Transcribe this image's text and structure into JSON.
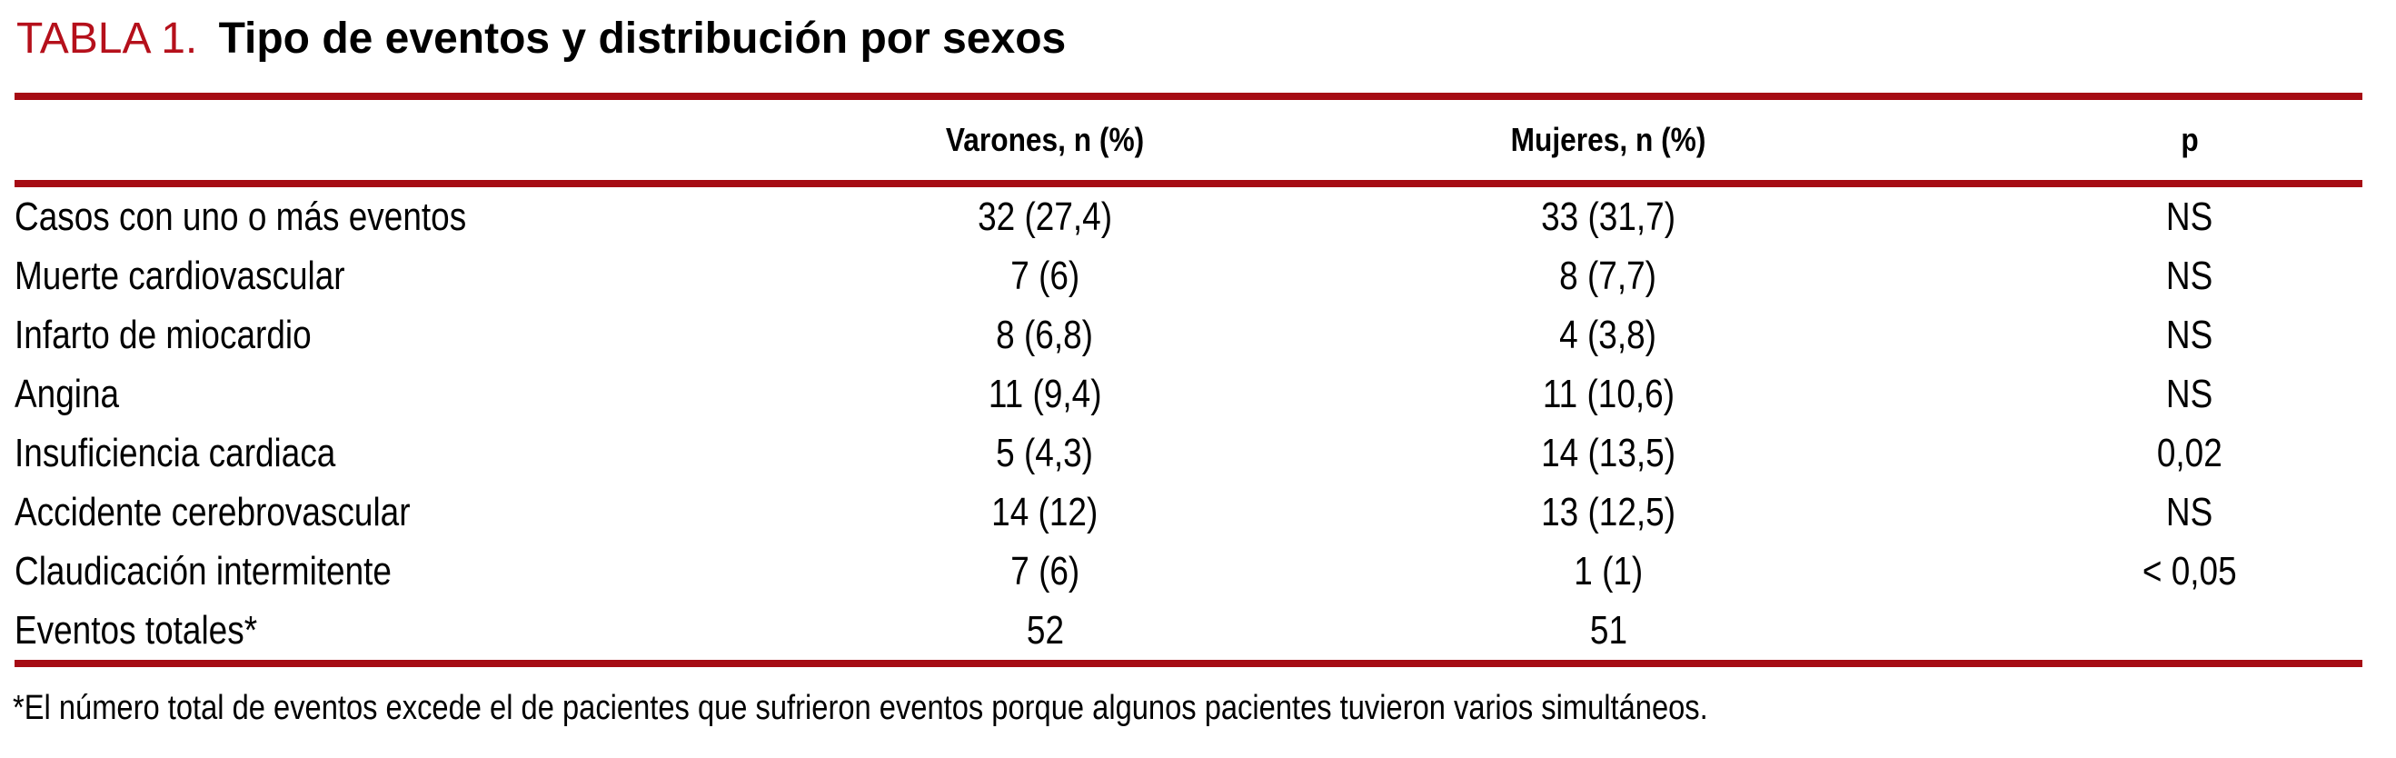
{
  "colors": {
    "title_red": "#b5101b",
    "rule_red": "#a60c14",
    "text": "#000000",
    "background": "#ffffff"
  },
  "header": {
    "label": "TABLA 1.",
    "title": "Tipo de eventos y distribución por sexos"
  },
  "columns": {
    "rowhead": "",
    "varones": "Varones, n (%)",
    "mujeres": "Mujeres, n (%)",
    "p": "p"
  },
  "rows": [
    {
      "label": "Casos con uno o más eventos",
      "varones": "32 (27,4)",
      "mujeres": "33 (31,7)",
      "p": "NS"
    },
    {
      "label": "Muerte cardiovascular",
      "varones": "7 (6)",
      "mujeres": "8 (7,7)",
      "p": "NS"
    },
    {
      "label": "Infarto de miocardio",
      "varones": "8 (6,8)",
      "mujeres": "4 (3,8)",
      "p": "NS"
    },
    {
      "label": "Angina",
      "varones": "11 (9,4)",
      "mujeres": "11 (10,6)",
      "p": "NS"
    },
    {
      "label": "Insuficiencia cardiaca",
      "varones": "5 (4,3)",
      "mujeres": "14 (13,5)",
      "p": "0,02"
    },
    {
      "label": "Accidente cerebrovascular",
      "varones": "14 (12)",
      "mujeres": "13 (12,5)",
      "p": "NS"
    },
    {
      "label": "Claudicación intermitente",
      "varones": "7 (6)",
      "mujeres": "1 (1)",
      "p": "< 0,05"
    },
    {
      "label": "Eventos totales*",
      "varones": "52",
      "mujeres": "51",
      "p": ""
    }
  ],
  "footnote": {
    "text": "*El número total de eventos excede el de pacientes que sufrieron eventos porque algunos pacientes tuvieron varios simultáneos."
  }
}
